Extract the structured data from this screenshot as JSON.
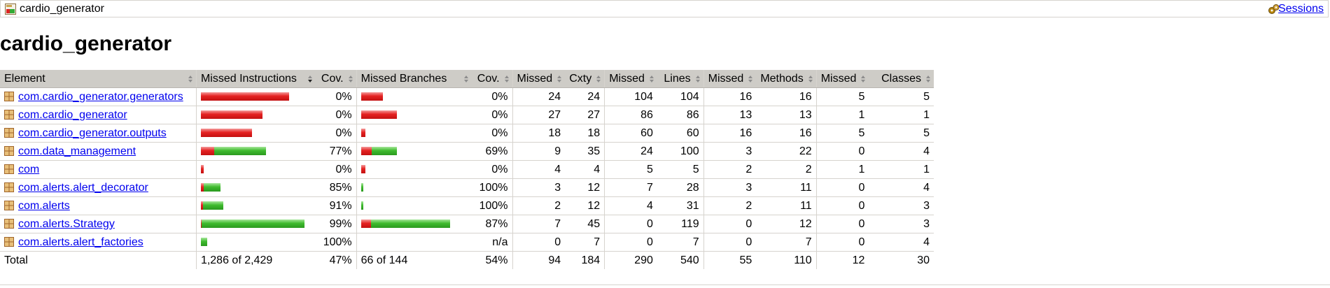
{
  "breadcrumb": {
    "label": "cardio_generator",
    "sessions_label": "Sessions"
  },
  "page_title": "cardio_generator",
  "table": {
    "headers": {
      "element": "Element",
      "missed_instructions": "Missed Instructions",
      "cov_instructions": "Cov.",
      "missed_branches": "Missed Branches",
      "cov_branches": "Cov.",
      "missed_cxty": "Missed",
      "cxty": "Cxty",
      "missed_lines": "Missed",
      "lines": "Lines",
      "missed_methods": "Missed",
      "methods": "Methods",
      "missed_classes": "Missed",
      "classes": "Classes"
    },
    "rows": [
      {
        "name": "com.cardio_generator.generators",
        "instr_missed_frac": 1.0,
        "instr_covered_frac": 0.0,
        "instr_cov": "0%",
        "br_missed_frac": 0.24,
        "br_covered_frac": 0.0,
        "br_cov": "0%",
        "missed_cxty": "24",
        "cxty": "24",
        "missed_lines": "104",
        "lines": "104",
        "missed_methods": "16",
        "methods": "16",
        "missed_classes": "5",
        "classes": "5"
      },
      {
        "name": "com.cardio_generator",
        "instr_missed_frac": 0.7,
        "instr_covered_frac": 0.0,
        "instr_cov": "0%",
        "br_missed_frac": 0.4,
        "br_covered_frac": 0.0,
        "br_cov": "0%",
        "missed_cxty": "27",
        "cxty": "27",
        "missed_lines": "86",
        "lines": "86",
        "missed_methods": "13",
        "methods": "13",
        "missed_classes": "1",
        "classes": "1"
      },
      {
        "name": "com.cardio_generator.outputs",
        "instr_missed_frac": 0.58,
        "instr_covered_frac": 0.0,
        "instr_cov": "0%",
        "br_missed_frac": 0.05,
        "br_covered_frac": 0.0,
        "br_cov": "0%",
        "missed_cxty": "18",
        "cxty": "18",
        "missed_lines": "60",
        "lines": "60",
        "missed_methods": "16",
        "methods": "16",
        "missed_classes": "5",
        "classes": "5"
      },
      {
        "name": "com.data_management",
        "instr_missed_frac": 0.15,
        "instr_covered_frac": 0.59,
        "instr_cov": "77%",
        "br_missed_frac": 0.12,
        "br_covered_frac": 0.28,
        "br_cov": "69%",
        "missed_cxty": "9",
        "cxty": "35",
        "missed_lines": "24",
        "lines": "100",
        "missed_methods": "3",
        "methods": "22",
        "missed_classes": "0",
        "classes": "4"
      },
      {
        "name": "com",
        "instr_missed_frac": 0.03,
        "instr_covered_frac": 0.0,
        "instr_cov": "0%",
        "br_missed_frac": 0.05,
        "br_covered_frac": 0.0,
        "br_cov": "0%",
        "missed_cxty": "4",
        "cxty": "4",
        "missed_lines": "5",
        "lines": "5",
        "missed_methods": "2",
        "methods": "2",
        "missed_classes": "1",
        "classes": "1"
      },
      {
        "name": "com.alerts.alert_decorator",
        "instr_missed_frac": 0.03,
        "instr_covered_frac": 0.19,
        "instr_cov": "85%",
        "br_missed_frac": 0.0,
        "br_covered_frac": 0.02,
        "br_cov": "100%",
        "missed_cxty": "3",
        "cxty": "12",
        "missed_lines": "7",
        "lines": "28",
        "missed_methods": "3",
        "methods": "11",
        "missed_classes": "0",
        "classes": "4"
      },
      {
        "name": "com.alerts",
        "instr_missed_frac": 0.02,
        "instr_covered_frac": 0.23,
        "instr_cov": "91%",
        "br_missed_frac": 0.0,
        "br_covered_frac": 0.02,
        "br_cov": "100%",
        "missed_cxty": "2",
        "cxty": "12",
        "missed_lines": "4",
        "lines": "31",
        "missed_methods": "2",
        "methods": "11",
        "missed_classes": "0",
        "classes": "3"
      },
      {
        "name": "com.alerts.Strategy",
        "instr_missed_frac": 0.01,
        "instr_covered_frac": 1.17,
        "instr_cov": "99%",
        "br_missed_frac": 0.11,
        "br_covered_frac": 0.88,
        "br_cov": "87%",
        "missed_cxty": "7",
        "cxty": "45",
        "missed_lines": "0",
        "lines": "119",
        "missed_methods": "0",
        "methods": "12",
        "missed_classes": "0",
        "classes": "3"
      },
      {
        "name": "com.alerts.alert_factories",
        "instr_missed_frac": 0.0,
        "instr_covered_frac": 0.07,
        "instr_cov": "100%",
        "br_missed_frac": 0.0,
        "br_covered_frac": 0.0,
        "br_cov": "n/a",
        "missed_cxty": "0",
        "cxty": "7",
        "missed_lines": "0",
        "lines": "7",
        "missed_methods": "0",
        "methods": "7",
        "missed_classes": "0",
        "classes": "4"
      }
    ],
    "total": {
      "label": "Total",
      "missed_instructions": "1,286 of 2,429",
      "instr_cov": "47%",
      "missed_branches": "66 of 144",
      "br_cov": "54%",
      "missed_cxty": "94",
      "cxty": "184",
      "missed_lines": "290",
      "lines": "540",
      "missed_methods": "55",
      "methods": "110",
      "missed_classes": "12",
      "classes": "30"
    }
  },
  "colors": {
    "missed": "#e52222",
    "covered": "#3fbb2e",
    "header_bg": "#ceccc7",
    "link": "#0000ee"
  }
}
